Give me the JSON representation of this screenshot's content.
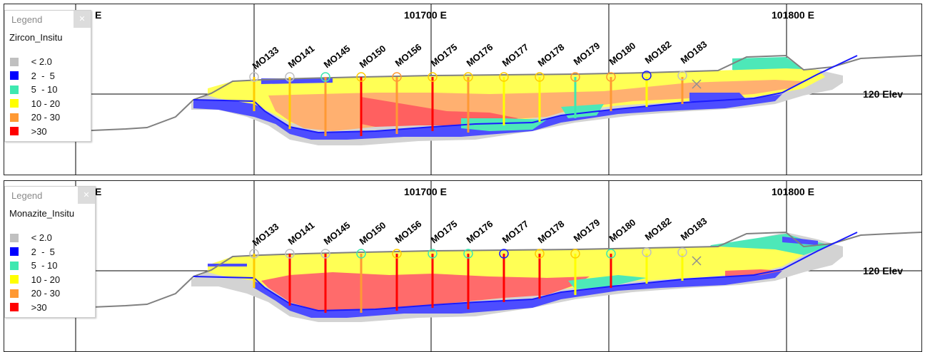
{
  "panels": [
    {
      "variable": "Zircon_Insitu",
      "legend_title": "Legend",
      "easting_labels": [
        "E",
        "101700 E",
        "101800 E"
      ],
      "elevation_label": "120 Elev",
      "holes": [
        "MO133",
        "MO141",
        "MO145",
        "MO150",
        "MO156",
        "MO175",
        "MO176",
        "MO177",
        "MO178",
        "MO179",
        "MO180",
        "MO182",
        "MO183"
      ]
    },
    {
      "variable": "Monazite_Insitu",
      "legend_title": "Legend",
      "easting_labels": [
        "E",
        "101700 E",
        "101800 E"
      ],
      "elevation_label": "120 Elev",
      "holes": [
        "MO133",
        "MO141",
        "MO145",
        "MO150",
        "MO156",
        "MO175",
        "MO176",
        "MO177",
        "MO178",
        "MO179",
        "MO180",
        "MO182",
        "MO183"
      ]
    }
  ],
  "legend_classes": [
    {
      "label": " < 2.0",
      "color": "#c0c0c0"
    },
    {
      "label": " 2  -  5",
      "color": "#0000ff"
    },
    {
      "label": " 5  - 10",
      "color": "#3ee8b0"
    },
    {
      "label": " 10 - 20",
      "color": "#ffff00"
    },
    {
      "label": " 20 - 30",
      "color": "#ff9933"
    },
    {
      "label": " >30",
      "color": "#ff0000"
    }
  ],
  "colors": {
    "topography": "#808080",
    "basement": "#1a1aff",
    "grid": "#000000"
  }
}
